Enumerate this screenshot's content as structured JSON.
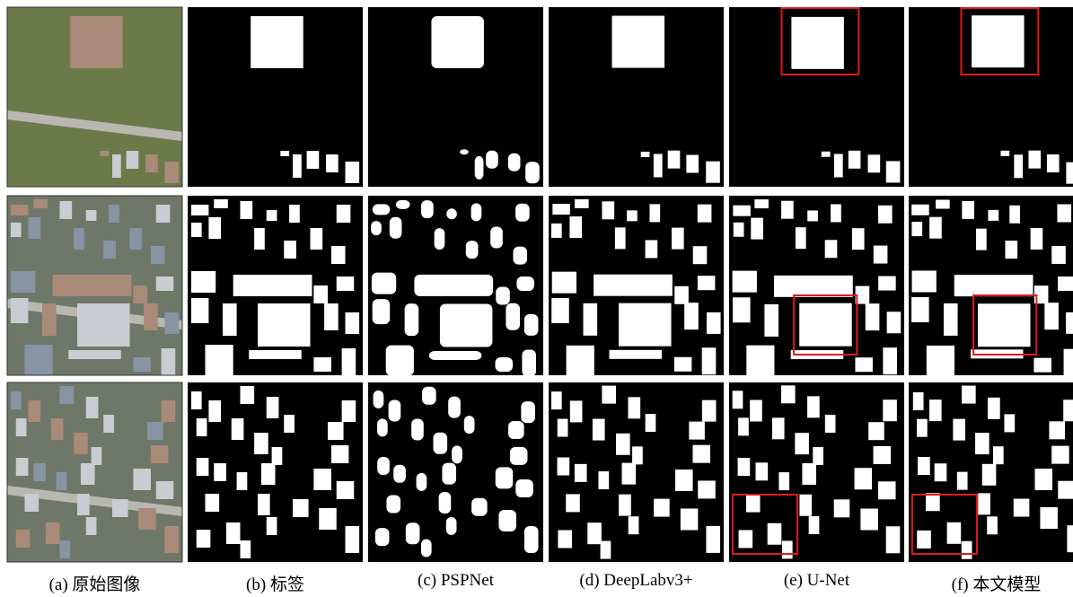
{
  "captions": [
    "(a)  原始图像",
    "(b)  标签",
    "(c) PSPNet",
    "(d) DeepLabv3+",
    "(e) U-Net",
    "(f)  本文模型"
  ]
}
